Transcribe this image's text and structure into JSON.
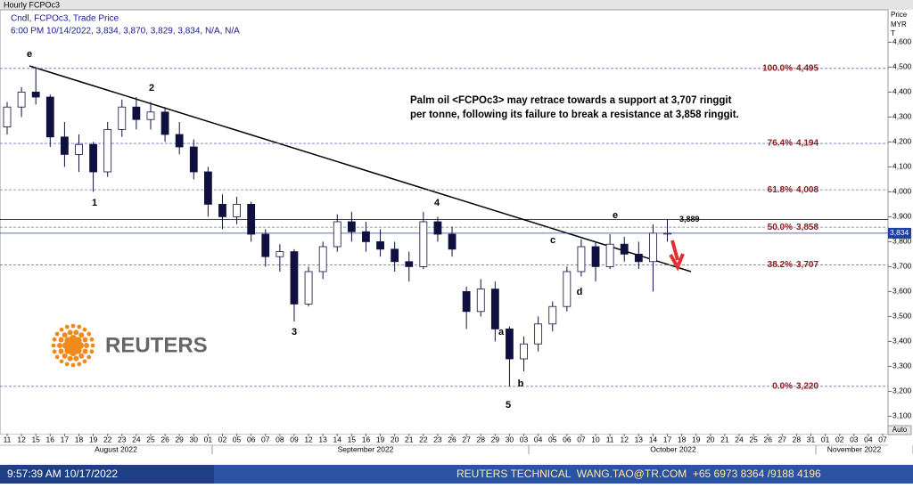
{
  "header": {
    "window_title": "Hourly FCPOc3",
    "legend": "Cndl, FCPOc3, Trade Price",
    "ohlc_line": "6:00 PM 10/14/2022, 3,834, 3,870, 3,829, 3,834, N/A, N/A"
  },
  "chart_data": {
    "type": "candlestick",
    "axis_title": [
      "Price",
      "MYR",
      "T"
    ],
    "categories": [
      "11",
      "12",
      "15",
      "16",
      "17",
      "18",
      "19",
      "22",
      "23",
      "24",
      "25",
      "26",
      "29",
      "30",
      "01",
      "02",
      "05",
      "06",
      "07",
      "08",
      "09",
      "12",
      "13",
      "14",
      "15",
      "16",
      "19",
      "20",
      "21",
      "22",
      "23",
      "26",
      "27",
      "28",
      "29",
      "30",
      "03",
      "04",
      "05",
      "06",
      "07",
      "10",
      "11",
      "12",
      "13",
      "14",
      "17",
      "18",
      "19",
      "20",
      "21",
      "24",
      "25",
      "26",
      "27",
      "28",
      "31",
      "01",
      "02",
      "03",
      "04",
      "07"
    ],
    "month_labels": [
      "August 2022",
      "September 2022",
      "October 2022",
      "November 2022"
    ],
    "series": [
      {
        "name": "FCPOc3",
        "color": "#101040",
        "open": [
          4260,
          4340,
          4400,
          4380,
          4220,
          4150,
          4190,
          4080,
          4250,
          4340,
          4290,
          4320,
          4230,
          4180,
          4080,
          3950,
          3900,
          3950,
          3830,
          3740,
          3760,
          3550,
          3680,
          3780,
          3880,
          3840,
          3800,
          3770,
          3720,
          3700,
          3880,
          3830,
          3600,
          3520,
          3610,
          3450,
          3330,
          3390,
          3470,
          3540,
          3680,
          3780,
          3700,
          3790,
          3750,
          3720,
          3834,
          null,
          null,
          null,
          null,
          null,
          null,
          null,
          null,
          null,
          null,
          null,
          null,
          null,
          null,
          null
        ],
        "high": [
          4360,
          4420,
          4495,
          4390,
          4280,
          4230,
          4200,
          4280,
          4370,
          4380,
          4360,
          4340,
          4280,
          4210,
          4100,
          3990,
          3980,
          3960,
          3850,
          3790,
          3770,
          3700,
          3800,
          3910,
          3920,
          3880,
          3850,
          3800,
          3760,
          3920,
          3900,
          3860,
          3620,
          3650,
          3640,
          3460,
          3420,
          3500,
          3560,
          3700,
          3810,
          3800,
          3830,
          3820,
          3800,
          3870,
          3889,
          null,
          null,
          null,
          null,
          null,
          null,
          null,
          null,
          null,
          null,
          null,
          null,
          null,
          null,
          null
        ],
        "low": [
          4230,
          4300,
          4350,
          4180,
          4100,
          4080,
          4000,
          4060,
          4220,
          4250,
          4250,
          4200,
          4150,
          4050,
          3900,
          3850,
          3870,
          3800,
          3700,
          3680,
          3480,
          3540,
          3650,
          3760,
          3800,
          3760,
          3740,
          3680,
          3640,
          3690,
          3800,
          3740,
          3450,
          3500,
          3400,
          3220,
          3280,
          3360,
          3440,
          3520,
          3660,
          3640,
          3690,
          3720,
          3690,
          3600,
          3800,
          null,
          null,
          null,
          null,
          null,
          null,
          null,
          null,
          null,
          null,
          null,
          null,
          null,
          null,
          null
        ],
        "close": [
          4340,
          4400,
          4380,
          4220,
          4150,
          4190,
          4080,
          4250,
          4340,
          4290,
          4320,
          4230,
          4180,
          4080,
          3950,
          3900,
          3950,
          3830,
          3740,
          3760,
          3550,
          3680,
          3780,
          3880,
          3840,
          3800,
          3770,
          3720,
          3700,
          3880,
          3830,
          3770,
          3520,
          3610,
          3450,
          3330,
          3390,
          3470,
          3540,
          3680,
          3780,
          3700,
          3790,
          3750,
          3720,
          3834,
          3834,
          null,
          null,
          null,
          null,
          null,
          null,
          null,
          null,
          null,
          null,
          null,
          null,
          null,
          null,
          null
        ]
      }
    ],
    "ylim": [
      3030,
      4730
    ],
    "yticks": [
      {
        "value": 3100,
        "label": "3,100"
      },
      {
        "value": 3200,
        "label": "3,200"
      },
      {
        "value": 3300,
        "label": "3,300"
      },
      {
        "value": 3400,
        "label": "3,400"
      },
      {
        "value": 3500,
        "label": "3,500"
      },
      {
        "value": 3600,
        "label": "3,600"
      },
      {
        "value": 3700,
        "label": "3,700"
      },
      {
        "value": 3800,
        "label": "3,800"
      },
      {
        "value": 3900,
        "label": "3,900"
      },
      {
        "value": 4000,
        "label": "4,000"
      },
      {
        "value": 4100,
        "label": "4,100"
      },
      {
        "value": 4200,
        "label": "4,200"
      },
      {
        "value": 4300,
        "label": "4,300"
      },
      {
        "value": 4400,
        "label": "4,400"
      },
      {
        "value": 4500,
        "label": "4,500"
      },
      {
        "value": 4600,
        "label": "4,600"
      }
    ],
    "fib_levels": [
      {
        "label": "100.0%",
        "value": 4495,
        "value_label": "4,495"
      },
      {
        "label": "76.4%",
        "value": 4194,
        "value_label": "4,194"
      },
      {
        "label": "61.8%",
        "value": 4008,
        "value_label": "4,008"
      },
      {
        "label": "50.0%",
        "value": 3858,
        "value_label": "3,858"
      },
      {
        "label": "38.2%",
        "value": 3707,
        "value_label": "3,707"
      },
      {
        "label": "0.0%",
        "value": 3220,
        "value_label": "3,220"
      }
    ],
    "resistance": {
      "value": 3889,
      "label": "3,889"
    },
    "last_price": {
      "value": 3834,
      "label": "3,834"
    },
    "wave_labels": [
      "e",
      "2",
      "1",
      "3",
      "4",
      "5",
      "a",
      "b",
      "c",
      "d",
      "e"
    ],
    "annotation": [
      "Palm oil <FCPOc3> may retrace towards a support at 3,707 ringgit",
      "per tonne, following its failure to break a resistance at 3,858 ringgit."
    ],
    "auto_button": "Auto"
  },
  "logo": "REUTERS",
  "footer": {
    "time": "9:57:39 AM 10/17/2022",
    "contact": "REUTERS TECHNICAL  WANG.TAO@TR.COM  +65 6973 8364 /9188 4196"
  }
}
